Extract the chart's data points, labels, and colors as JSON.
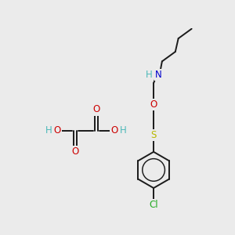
{
  "bg_color": "#ebebeb",
  "bond_color": "#1a1a1a",
  "bond_width": 1.4,
  "atom_colors": {
    "C": "#1a1a1a",
    "H": "#4db8b8",
    "N": "#0000cc",
    "O": "#cc0000",
    "S": "#b8b800",
    "Cl": "#22aa22"
  },
  "fs": 8.5
}
